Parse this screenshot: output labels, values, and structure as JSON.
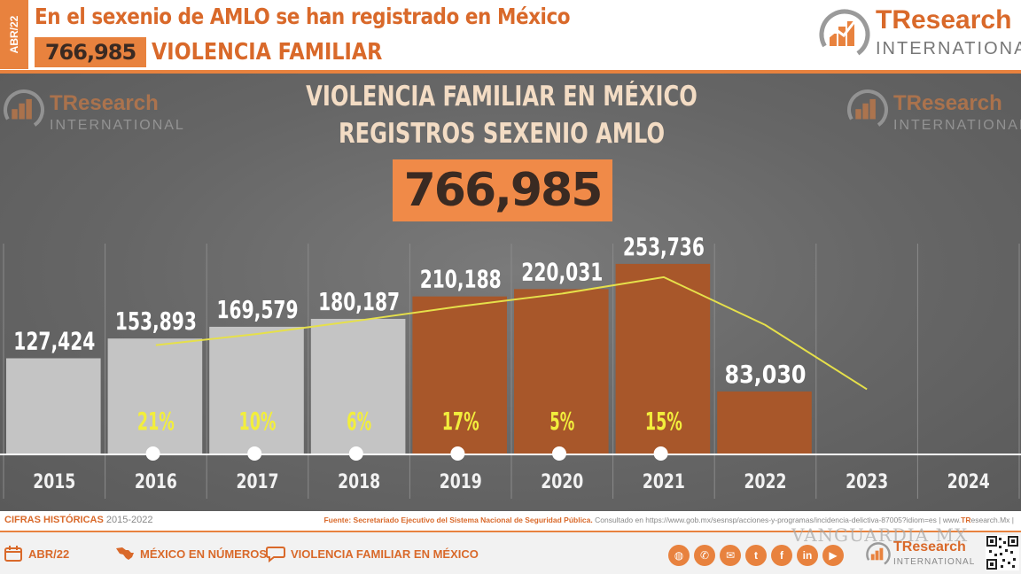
{
  "header": {
    "date_tab": "ABR/22",
    "headline": "En el sexenio de AMLO se han registrado en México",
    "total": "766,985",
    "subject": "VIOLENCIA FAMILIAR"
  },
  "brand": {
    "name": "TResearch",
    "sub": "INTERNATIONAL"
  },
  "colors": {
    "orange": "#e8823e",
    "bar_gray": "#c4c4c4",
    "bar_orange": "#a8572a",
    "trend_line": "#e6e04a",
    "pct_text": "#f2ee3c"
  },
  "chart_data": {
    "type": "bar",
    "title": "VIOLENCIA FAMILIAR EN MÉXICO",
    "subtitle": "REGISTROS SEXENIO AMLO",
    "total_label": "766,985",
    "categories": [
      "2015",
      "2016",
      "2017",
      "2018",
      "2019",
      "2020",
      "2021",
      "2022",
      "2023",
      "2024"
    ],
    "values": [
      127424,
      153893,
      169579,
      180187,
      210188,
      220031,
      253736,
      83030,
      null,
      null
    ],
    "value_labels": [
      "127,424",
      "153,893",
      "169,579",
      "180,187",
      "210,188",
      "220,031",
      "253,736",
      "83,030",
      "",
      ""
    ],
    "growth_labels": [
      "",
      "21%",
      "10%",
      "6%",
      "17%",
      "5%",
      "15%",
      "",
      "",
      ""
    ],
    "highlight_from_index": 4,
    "trend": {
      "type": "line",
      "note": "yellow trend line from 2016 to 2023",
      "x": [
        "2016",
        "2017",
        "2018",
        "2019",
        "2020",
        "2021",
        "2022",
        "2023"
      ],
      "y": [
        145000,
        160000,
        178000,
        197000,
        214000,
        236000,
        172000,
        86000
      ]
    },
    "ylim": [
      0,
      320000
    ],
    "grid": "vertical separators"
  },
  "footer": {
    "historic_label": "CIFRAS HISTÓRICAS",
    "historic_range": "2015-2022",
    "source_prefix": "Fuente: Secretariado Ejecutivo del Sistema Nacional de Seguridad Pública.",
    "source_detail": "Consultado en https://www.gob.mx/sesnsp/acciones-y-programas/incidencia-delictiva-87005?idiom=es | www.",
    "source_brand": "TR",
    "source_suffix": "esearch.Mx |"
  },
  "bottom_bar": {
    "items": [
      {
        "icon": "calendar-icon",
        "label": "ABR/22"
      },
      {
        "icon": "mexico-map-icon",
        "label": "MÉXICO EN NÚMEROS"
      },
      {
        "icon": "chat-bubble-icon",
        "label": "VIOLENCIA FAMILIAR EN MÉXICO"
      }
    ],
    "social": [
      {
        "icon": "globe-icon",
        "glyph": "◍"
      },
      {
        "icon": "phone-icon",
        "glyph": "✆"
      },
      {
        "icon": "email-icon",
        "glyph": "✉"
      },
      {
        "icon": "twitter-icon",
        "glyph": "t"
      },
      {
        "icon": "facebook-icon",
        "glyph": "f"
      },
      {
        "icon": "linkedin-icon",
        "glyph": "in"
      },
      {
        "icon": "youtube-icon",
        "glyph": "▶"
      }
    ],
    "watermark": "VANGUARDIA MX"
  }
}
